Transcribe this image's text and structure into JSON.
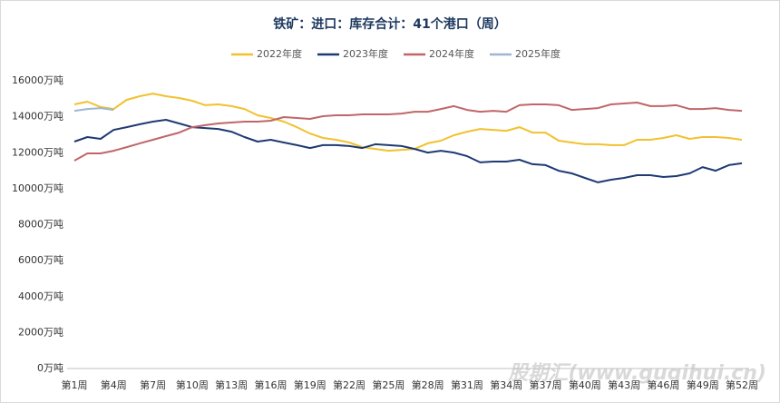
{
  "chart_data": {
    "type": "line",
    "title": "铁矿：进口：库存合计：41个港口（周）",
    "watermark": "股期汇(www.guqihui.cn)",
    "categories": [
      "第1周",
      null,
      null,
      "第4周",
      null,
      null,
      "第7周",
      null,
      null,
      "第10周",
      null,
      null,
      "第13周",
      null,
      null,
      "第16周",
      null,
      null,
      "第19周",
      null,
      null,
      "第22周",
      null,
      null,
      "第25周",
      null,
      null,
      "第28周",
      null,
      null,
      "第31周",
      null,
      null,
      "第34周",
      null,
      null,
      "第37周",
      null,
      null,
      "第40周",
      null,
      null,
      "第43周",
      null,
      null,
      "第46周",
      null,
      null,
      "第49周",
      null,
      null,
      "第52周"
    ],
    "series": [
      {
        "name": "2022年度",
        "color": "#f2c12e",
        "values": [
          14690,
          14840,
          14540,
          14430,
          14940,
          15140,
          15290,
          15140,
          15040,
          14890,
          14640,
          14690,
          14590,
          14430,
          14080,
          13930,
          13730,
          13420,
          13070,
          12820,
          12720,
          12570,
          12310,
          12210,
          12110,
          12160,
          12210,
          12520,
          12670,
          12970,
          13170,
          13320,
          13270,
          13220,
          13420,
          13120,
          13120,
          12670,
          12570,
          12470,
          12470,
          12420,
          12420,
          12720,
          12720,
          12820,
          12970,
          12770,
          12870,
          12870,
          12820,
          12720
        ]
      },
      {
        "name": "2023年度",
        "color": "#1f3a73",
        "values": [
          12620,
          12870,
          12770,
          13270,
          13420,
          13580,
          13730,
          13830,
          13630,
          13420,
          13370,
          13320,
          13170,
          12870,
          12620,
          12720,
          12570,
          12420,
          12260,
          12420,
          12420,
          12370,
          12260,
          12470,
          12420,
          12370,
          12210,
          12010,
          12110,
          12010,
          11810,
          11460,
          11510,
          11510,
          11610,
          11360,
          11310,
          11000,
          10850,
          10600,
          10350,
          10500,
          10600,
          10750,
          10750,
          10650,
          10700,
          10850,
          11200,
          11000,
          11310,
          11410
        ]
      },
      {
        "name": "2024年度",
        "color": "#c0666a",
        "values": [
          11560,
          11960,
          11960,
          12110,
          12310,
          12520,
          12720,
          12920,
          13120,
          13420,
          13530,
          13630,
          13680,
          13730,
          13730,
          13780,
          13980,
          13930,
          13880,
          14030,
          14080,
          14080,
          14130,
          14130,
          14130,
          14180,
          14280,
          14280,
          14430,
          14590,
          14380,
          14280,
          14330,
          14280,
          14640,
          14690,
          14690,
          14640,
          14380,
          14430,
          14480,
          14690,
          14740,
          14790,
          14590,
          14590,
          14640,
          14430,
          14430,
          14480,
          14380,
          14330
        ]
      },
      {
        "name": "2025年度",
        "color": "#9fb6d0",
        "values": [
          14330,
          14430,
          14480,
          14380,
          null,
          null,
          null,
          null,
          null,
          null,
          null,
          null,
          null,
          null,
          null,
          null,
          null,
          null,
          null,
          null,
          null,
          null,
          null,
          null,
          null,
          null,
          null,
          null,
          null,
          null,
          null,
          null,
          null,
          null,
          null,
          null,
          null,
          null,
          null,
          null,
          null,
          null,
          null,
          null,
          null,
          null,
          null,
          null,
          null,
          null,
          null,
          null
        ]
      }
    ],
    "ylim": [
      0,
      16000
    ],
    "yticks": [
      {
        "value": 0,
        "label": "0万吨"
      },
      {
        "value": 2000,
        "label": "2000万吨"
      },
      {
        "value": 4000,
        "label": "4000万吨"
      },
      {
        "value": 6000,
        "label": "6000万吨"
      },
      {
        "value": 8000,
        "label": "8000万吨"
      },
      {
        "value": 10000,
        "label": "10000万吨"
      },
      {
        "value": 12000,
        "label": "12000万吨"
      },
      {
        "value": 14000,
        "label": "14000万吨"
      },
      {
        "value": 16000,
        "label": "16000万吨"
      }
    ],
    "grid": false,
    "legend": "top"
  }
}
